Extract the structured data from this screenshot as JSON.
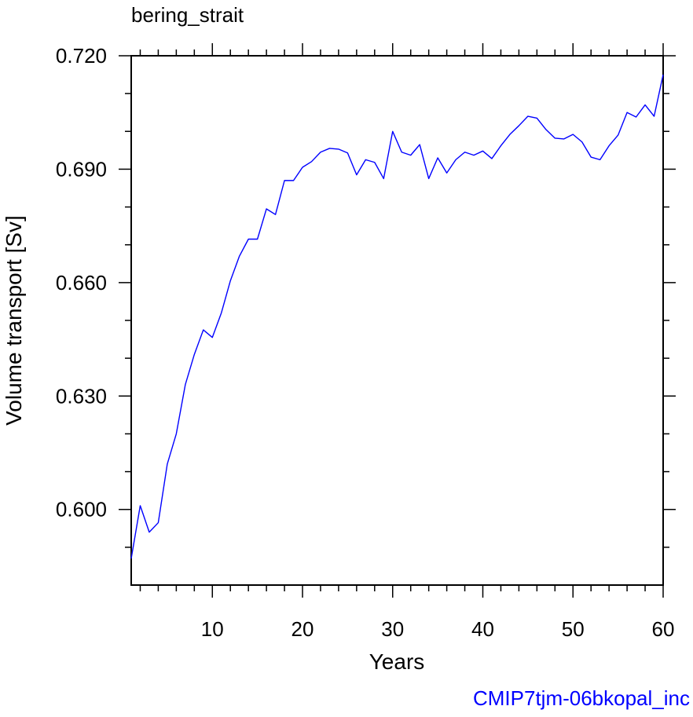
{
  "chart_data": {
    "type": "line",
    "title": "bering_strait",
    "xlabel": "Years",
    "ylabel": "Volume transport [Sv]",
    "xlim": [
      1,
      60
    ],
    "ylim": [
      0.58,
      0.72
    ],
    "x_ticks": [
      10,
      20,
      30,
      40,
      50,
      60
    ],
    "x_tick_labels": [
      "10",
      "20",
      "30",
      "40",
      "50",
      "60"
    ],
    "y_ticks": [
      0.6,
      0.63,
      0.66,
      0.69,
      0.72
    ],
    "y_tick_labels": [
      "0.600",
      "0.630",
      "0.660",
      "0.690",
      "0.720"
    ],
    "grid": false,
    "series": [
      {
        "color": "#0000ff",
        "x": [
          1,
          2,
          3,
          4,
          5,
          6,
          7,
          8,
          9,
          10,
          11,
          12,
          13,
          14,
          15,
          16,
          17,
          18,
          19,
          20,
          21,
          22,
          23,
          24,
          25,
          26,
          27,
          28,
          29,
          30,
          31,
          32,
          33,
          34,
          35,
          36,
          37,
          38,
          39,
          40,
          41,
          42,
          43,
          44,
          45,
          46,
          47,
          48,
          49,
          50,
          51,
          52,
          53,
          54,
          55,
          56,
          57,
          58,
          59,
          60
        ],
        "values": [
          0.587,
          0.601,
          0.594,
          0.5965,
          0.612,
          0.62,
          0.633,
          0.641,
          0.6475,
          0.6455,
          0.652,
          0.6605,
          0.667,
          0.6715,
          0.6715,
          0.6795,
          0.678,
          0.687,
          0.687,
          0.6905,
          0.692,
          0.6945,
          0.6955,
          0.6953,
          0.6943,
          0.6885,
          0.6925,
          0.6918,
          0.6875,
          0.7,
          0.6945,
          0.6937,
          0.6965,
          0.6875,
          0.693,
          0.689,
          0.6925,
          0.6945,
          0.6937,
          0.6948,
          0.6928,
          0.6962,
          0.6992,
          0.7015,
          0.704,
          0.7035,
          0.7005,
          0.6982,
          0.698,
          0.6992,
          0.6972,
          0.6932,
          0.6925,
          0.6962,
          0.699,
          0.705,
          0.7038,
          0.707,
          0.704,
          0.715
        ]
      }
    ]
  },
  "footer": {
    "label": "CMIP7tjm-06bkopal_inc",
    "color": "#0000ff"
  }
}
